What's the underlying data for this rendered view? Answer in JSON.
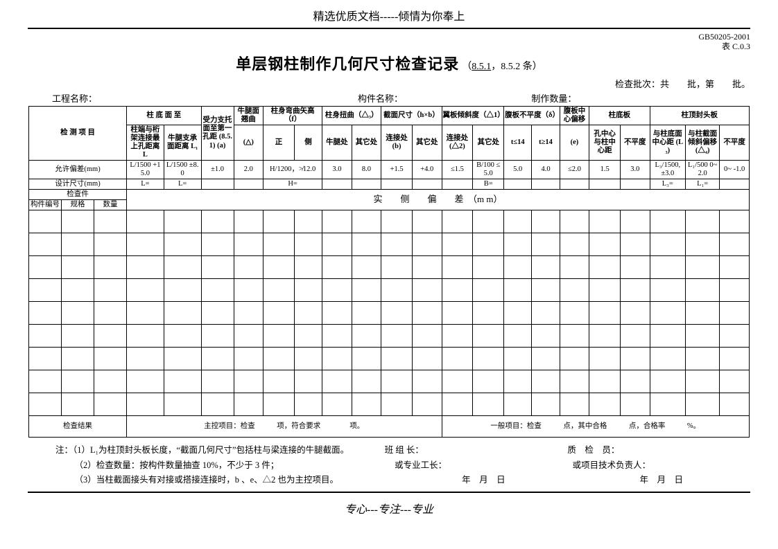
{
  "banner": "精选优质文档-----倾情为你奉上",
  "gb_code": "GB50205-2001",
  "gb_table": "表 C.0.3",
  "title_main": "单层钢柱制作几何尺寸检查记录",
  "title_sub_prefix": "（",
  "title_sub_link": "8.5.1",
  "title_sub_rest": "，8.5.2 条）",
  "batch_line": "检查批次：共　　批，第　　批。",
  "labels": {
    "project": "工程名称：",
    "component": "构件名称：",
    "qty": "制作数量："
  },
  "headers": {
    "inspect_item": "检 测 项 目",
    "col_bottom": "柱 底 面 至",
    "col_bottom_a": "柱端与桁架连接最上孔距离 L",
    "col_bottom_b": "牛腿支承面距离 L₁",
    "bracket_first": "受力支托面至第一孔距 (8.5.1) (a)",
    "leg_warp": "牛腿面翘曲",
    "leg_warp_sub": "(△)",
    "bend": "柱身弯曲矢高（f）",
    "bend_a": "正",
    "bend_b": "侧",
    "twist": "柱身扭曲（△₃）",
    "twist_a": "牛腿处",
    "twist_b": "其它处",
    "section": "截面尺寸（h×b）",
    "section_a": "连接处 (b)",
    "section_b": "其它处",
    "flange": "翼板倾斜度（△1）",
    "flange_a": "连接处 (△2)",
    "flange_b": "其它处",
    "web": "腹板不平度（δ）",
    "web_a": "t≤14",
    "web_b": "t≥14",
    "web_center": "腹板中心偏移",
    "web_center_e": "(e)",
    "baseplate": "柱底板",
    "bp_a": "孔中心与柱中心距",
    "bp_b": "不平度",
    "topplate": "柱顶封头板",
    "tp_a": "与柱底面中心距 (L₃)",
    "tp_b": "与柱截面倾斜偏移 (△₄)",
    "tp_c": "不平度",
    "tolerance": "允许偏差(mm)",
    "design": "设计尺寸(mm)",
    "check_piece": "检查件",
    "comp_no": "构件编号",
    "spec": "规格",
    "count": "数量",
    "actual": "实　　侧　　偏　　差　（m m）",
    "result": "检查结果",
    "result_main": "主控项目：检查　　　项，符合要求　　　　项。",
    "result_general": "一般项目：检查　　　点，其中合格　　　点，合格率　　　%。"
  },
  "tolerances": {
    "c1": "L/1500 +15.0",
    "c2": "L/1500 ±8.0",
    "c3": "±1.0",
    "c4": "2.0",
    "c5": "H/1200，≯12.0",
    "c7": "3.0",
    "c8": "8.0",
    "c9": "+1.5",
    "c10": "+4.0",
    "c11": "≤1.5",
    "c12": "B/100 ≤5.0",
    "c13": "5.0",
    "c14": "4.0",
    "c15": "≤2.0",
    "c16": "1.5",
    "c17": "3.0",
    "c18": "L₃/1500, ±3.0",
    "c19": "L₁/500 0~2.0",
    "c20": "0~ -1.0"
  },
  "design_vals": {
    "d1": "L=",
    "d2": "L=",
    "d5": "H=",
    "d12": "B=",
    "d18": "L₃=",
    "d19": "L₁="
  },
  "notes": {
    "label": "注：",
    "n1": "（1）L₁为柱顶封头板长度，“截面几何尺寸”包括柱与梁连接的牛腿截面。",
    "n2": "（2）检查数量：按构件数量抽查 10%，不少于 3 件；",
    "n3": "（3）当柱截面接头有对接或搭接连接时，b 、e、△2 也为主控项目。",
    "team": "班 组 长：",
    "foreman": "或专业工长：",
    "qc": "质　检　员：",
    "pm": "或项目技术负责人：",
    "date": "年　月　日"
  },
  "footer": "专心---专注---专业",
  "blank_rows": 9
}
